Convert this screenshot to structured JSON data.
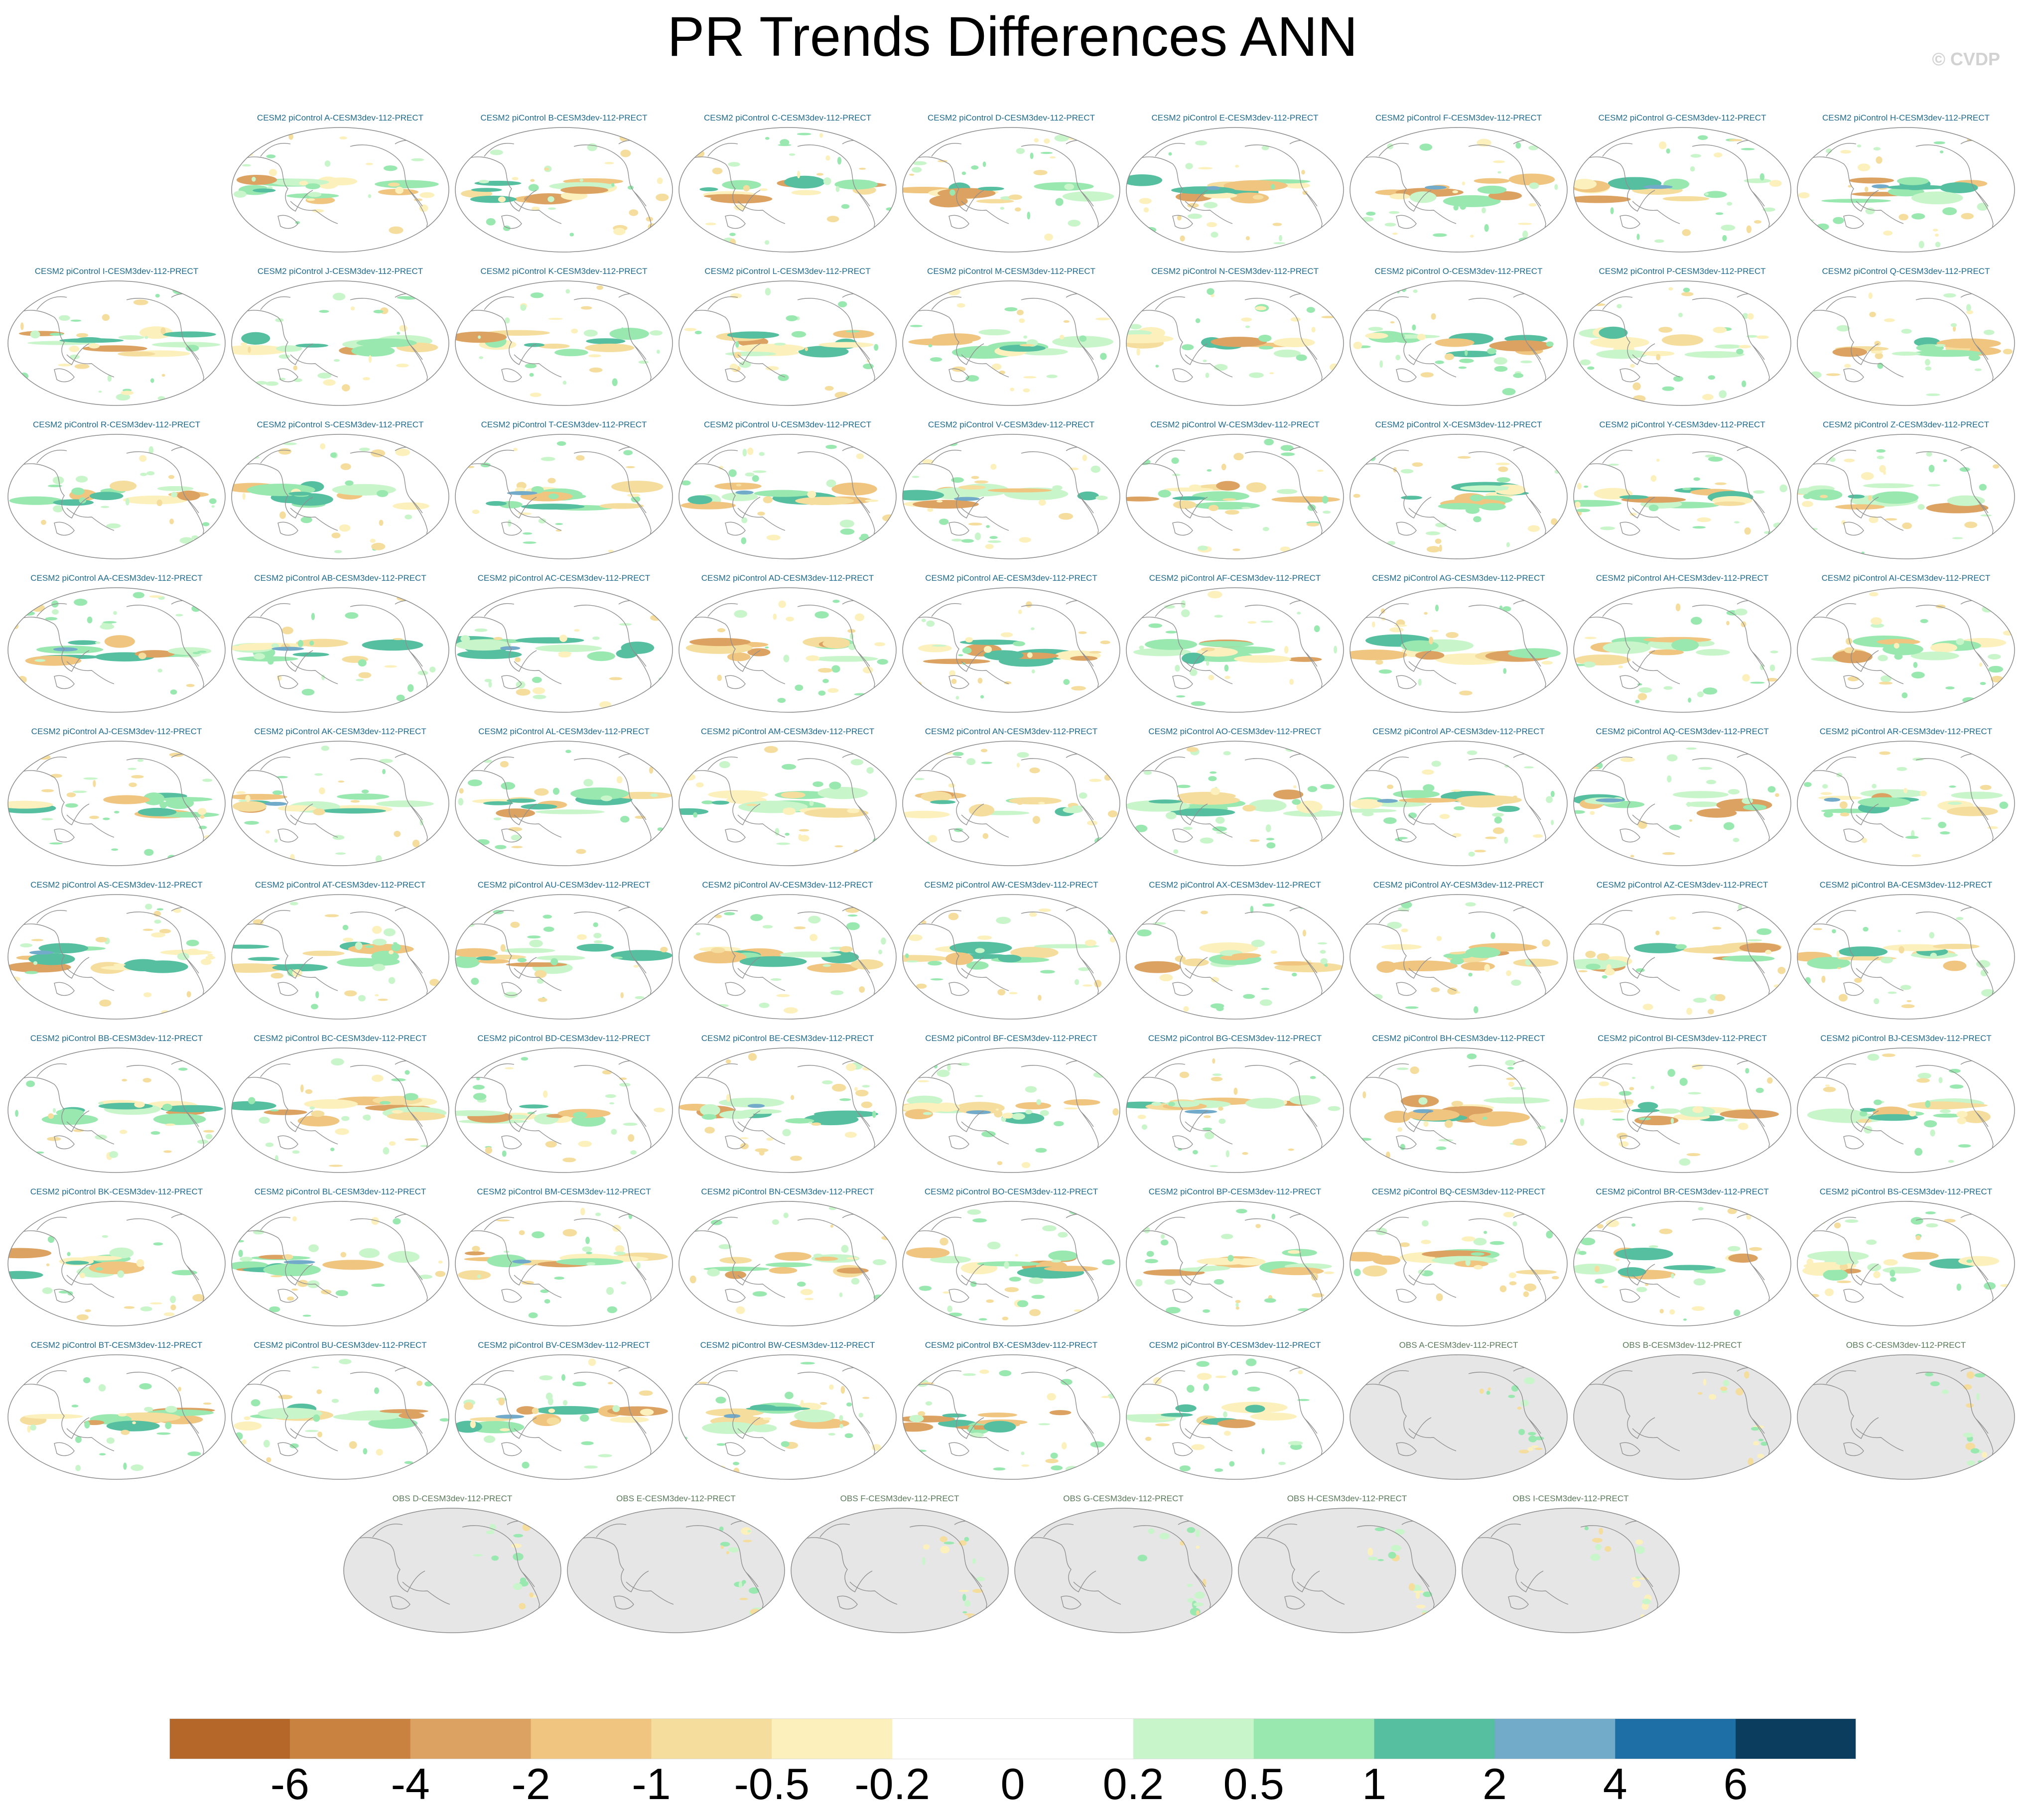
{
  "title": "PR Trends Differences ANN",
  "watermark": "© CVDP",
  "panels": [
    {
      "label": "CESM2 piControl A-CESM3dev-112-PRECT",
      "type": "model"
    },
    {
      "label": "CESM2 piControl B-CESM3dev-112-PRECT",
      "type": "model"
    },
    {
      "label": "CESM2 piControl C-CESM3dev-112-PRECT",
      "type": "model"
    },
    {
      "label": "CESM2 piControl D-CESM3dev-112-PRECT",
      "type": "model"
    },
    {
      "label": "CESM2 piControl E-CESM3dev-112-PRECT",
      "type": "model"
    },
    {
      "label": "CESM2 piControl F-CESM3dev-112-PRECT",
      "type": "model"
    },
    {
      "label": "CESM2 piControl G-CESM3dev-112-PRECT",
      "type": "model"
    },
    {
      "label": "CESM2 piControl H-CESM3dev-112-PRECT",
      "type": "model"
    },
    {
      "label": "CESM2 piControl I-CESM3dev-112-PRECT",
      "type": "model"
    },
    {
      "label": "CESM2 piControl J-CESM3dev-112-PRECT",
      "type": "model"
    },
    {
      "label": "CESM2 piControl K-CESM3dev-112-PRECT",
      "type": "model"
    },
    {
      "label": "CESM2 piControl L-CESM3dev-112-PRECT",
      "type": "model"
    },
    {
      "label": "CESM2 piControl M-CESM3dev-112-PRECT",
      "type": "model"
    },
    {
      "label": "CESM2 piControl N-CESM3dev-112-PRECT",
      "type": "model"
    },
    {
      "label": "CESM2 piControl O-CESM3dev-112-PRECT",
      "type": "model"
    },
    {
      "label": "CESM2 piControl P-CESM3dev-112-PRECT",
      "type": "model"
    },
    {
      "label": "CESM2 piControl Q-CESM3dev-112-PRECT",
      "type": "model"
    },
    {
      "label": "CESM2 piControl R-CESM3dev-112-PRECT",
      "type": "model"
    },
    {
      "label": "CESM2 piControl S-CESM3dev-112-PRECT",
      "type": "model"
    },
    {
      "label": "CESM2 piControl T-CESM3dev-112-PRECT",
      "type": "model"
    },
    {
      "label": "CESM2 piControl U-CESM3dev-112-PRECT",
      "type": "model"
    },
    {
      "label": "CESM2 piControl V-CESM3dev-112-PRECT",
      "type": "model"
    },
    {
      "label": "CESM2 piControl W-CESM3dev-112-PRECT",
      "type": "model"
    },
    {
      "label": "CESM2 piControl X-CESM3dev-112-PRECT",
      "type": "model"
    },
    {
      "label": "CESM2 piControl Y-CESM3dev-112-PRECT",
      "type": "model"
    },
    {
      "label": "CESM2 piControl Z-CESM3dev-112-PRECT",
      "type": "model"
    },
    {
      "label": "CESM2 piControl AA-CESM3dev-112-PRECT",
      "type": "model"
    },
    {
      "label": "CESM2 piControl AB-CESM3dev-112-PRECT",
      "type": "model"
    },
    {
      "label": "CESM2 piControl AC-CESM3dev-112-PRECT",
      "type": "model"
    },
    {
      "label": "CESM2 piControl AD-CESM3dev-112-PRECT",
      "type": "model"
    },
    {
      "label": "CESM2 piControl AE-CESM3dev-112-PRECT",
      "type": "model"
    },
    {
      "label": "CESM2 piControl AF-CESM3dev-112-PRECT",
      "type": "model"
    },
    {
      "label": "CESM2 piControl AG-CESM3dev-112-PRECT",
      "type": "model"
    },
    {
      "label": "CESM2 piControl AH-CESM3dev-112-PRECT",
      "type": "model"
    },
    {
      "label": "CESM2 piControl AI-CESM3dev-112-PRECT",
      "type": "model"
    },
    {
      "label": "CESM2 piControl AJ-CESM3dev-112-PRECT",
      "type": "model"
    },
    {
      "label": "CESM2 piControl AK-CESM3dev-112-PRECT",
      "type": "model"
    },
    {
      "label": "CESM2 piControl AL-CESM3dev-112-PRECT",
      "type": "model"
    },
    {
      "label": "CESM2 piControl AM-CESM3dev-112-PRECT",
      "type": "model"
    },
    {
      "label": "CESM2 piControl AN-CESM3dev-112-PRECT",
      "type": "model"
    },
    {
      "label": "CESM2 piControl AO-CESM3dev-112-PRECT",
      "type": "model"
    },
    {
      "label": "CESM2 piControl AP-CESM3dev-112-PRECT",
      "type": "model"
    },
    {
      "label": "CESM2 piControl AQ-CESM3dev-112-PRECT",
      "type": "model"
    },
    {
      "label": "CESM2 piControl AR-CESM3dev-112-PRECT",
      "type": "model"
    },
    {
      "label": "CESM2 piControl AS-CESM3dev-112-PRECT",
      "type": "model"
    },
    {
      "label": "CESM2 piControl AT-CESM3dev-112-PRECT",
      "type": "model"
    },
    {
      "label": "CESM2 piControl AU-CESM3dev-112-PRECT",
      "type": "model"
    },
    {
      "label": "CESM2 piControl AV-CESM3dev-112-PRECT",
      "type": "model"
    },
    {
      "label": "CESM2 piControl AW-CESM3dev-112-PRECT",
      "type": "model"
    },
    {
      "label": "CESM2 piControl AX-CESM3dev-112-PRECT",
      "type": "model"
    },
    {
      "label": "CESM2 piControl AY-CESM3dev-112-PRECT",
      "type": "model"
    },
    {
      "label": "CESM2 piControl AZ-CESM3dev-112-PRECT",
      "type": "model"
    },
    {
      "label": "CESM2 piControl BA-CESM3dev-112-PRECT",
      "type": "model"
    },
    {
      "label": "CESM2 piControl BB-CESM3dev-112-PRECT",
      "type": "model"
    },
    {
      "label": "CESM2 piControl BC-CESM3dev-112-PRECT",
      "type": "model"
    },
    {
      "label": "CESM2 piControl BD-CESM3dev-112-PRECT",
      "type": "model"
    },
    {
      "label": "CESM2 piControl BE-CESM3dev-112-PRECT",
      "type": "model"
    },
    {
      "label": "CESM2 piControl BF-CESM3dev-112-PRECT",
      "type": "model"
    },
    {
      "label": "CESM2 piControl BG-CESM3dev-112-PRECT",
      "type": "model"
    },
    {
      "label": "CESM2 piControl BH-CESM3dev-112-PRECT",
      "type": "model"
    },
    {
      "label": "CESM2 piControl BI-CESM3dev-112-PRECT",
      "type": "model"
    },
    {
      "label": "CESM2 piControl BJ-CESM3dev-112-PRECT",
      "type": "model"
    },
    {
      "label": "CESM2 piControl BK-CESM3dev-112-PRECT",
      "type": "model"
    },
    {
      "label": "CESM2 piControl BL-CESM3dev-112-PRECT",
      "type": "model"
    },
    {
      "label": "CESM2 piControl BM-CESM3dev-112-PRECT",
      "type": "model"
    },
    {
      "label": "CESM2 piControl BN-CESM3dev-112-PRECT",
      "type": "model"
    },
    {
      "label": "CESM2 piControl BO-CESM3dev-112-PRECT",
      "type": "model"
    },
    {
      "label": "CESM2 piControl BP-CESM3dev-112-PRECT",
      "type": "model"
    },
    {
      "label": "CESM2 piControl BQ-CESM3dev-112-PRECT",
      "type": "model"
    },
    {
      "label": "CESM2 piControl BR-CESM3dev-112-PRECT",
      "type": "model"
    },
    {
      "label": "CESM2 piControl BS-CESM3dev-112-PRECT",
      "type": "model"
    },
    {
      "label": "CESM2 piControl BT-CESM3dev-112-PRECT",
      "type": "model"
    },
    {
      "label": "CESM2 piControl BU-CESM3dev-112-PRECT",
      "type": "model"
    },
    {
      "label": "CESM2 piControl BV-CESM3dev-112-PRECT",
      "type": "model"
    },
    {
      "label": "CESM2 piControl BW-CESM3dev-112-PRECT",
      "type": "model"
    },
    {
      "label": "CESM2 piControl BX-CESM3dev-112-PRECT",
      "type": "model"
    },
    {
      "label": "CESM2 piControl BY-CESM3dev-112-PRECT",
      "type": "model"
    },
    {
      "label": "OBS A-CESM3dev-112-PRECT",
      "type": "obs"
    },
    {
      "label": "OBS B-CESM3dev-112-PRECT",
      "type": "obs"
    },
    {
      "label": "OBS C-CESM3dev-112-PRECT",
      "type": "obs"
    },
    {
      "label": "OBS D-CESM3dev-112-PRECT",
      "type": "obs"
    },
    {
      "label": "OBS E-CESM3dev-112-PRECT",
      "type": "obs"
    },
    {
      "label": "OBS F-CESM3dev-112-PRECT",
      "type": "obs"
    },
    {
      "label": "OBS G-CESM3dev-112-PRECT",
      "type": "obs"
    },
    {
      "label": "OBS H-CESM3dev-112-PRECT",
      "type": "obs"
    },
    {
      "label": "OBS I-CESM3dev-112-PRECT",
      "type": "obs"
    }
  ],
  "colorbar": {
    "labels": [
      "-6",
      "-4",
      "-2",
      "-1",
      "-0.5",
      "-0.2",
      "0",
      "0.2",
      "0.5",
      "1",
      "2",
      "4",
      "6"
    ],
    "colors": [
      "#b5672a",
      "#c9823f",
      "#dba262",
      "#efc580",
      "#f5dd9d",
      "#fcf1bd",
      "#ffffff",
      "#ffffff",
      "#c8f5c9",
      "#98e8b0",
      "#55bfa0",
      "#72aac9",
      "#1d6fa5",
      "#0a3d5e"
    ]
  },
  "palette": {
    "ocean_land_missing": "#e6e6e6",
    "coastline": "#8f8f8f",
    "model_title": "#1f6a8c",
    "obs_title": "#5a7a5a"
  }
}
